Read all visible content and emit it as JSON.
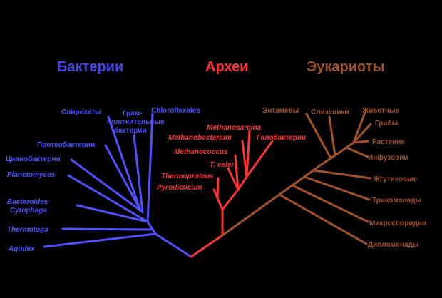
{
  "headings": {
    "bacteria": "Бактерии",
    "archaea": "Археи",
    "eukaryota": "Эукариоты"
  },
  "colors": {
    "bacteria": "#5050ff",
    "archaea": "#ff3333",
    "eukaryota": "#a0522d",
    "background": "#000000"
  },
  "bacteria": {
    "spirochetes": "Спирохеты",
    "gram_positive": [
      "Грам-",
      "положительные",
      "бактерии"
    ],
    "chloroflexi": "Chloroflexales",
    "proteobacteria": "Протеобактерии",
    "cyanobacteria": "Цианобактерии",
    "planctomyces": "Planctomyces",
    "bacteroides": [
      "Bacteroides",
      "Cytophaga"
    ],
    "thermotoga": "Thermotoga",
    "aquifex": "Aquifex"
  },
  "archaea": {
    "methanosarcina": "Methanosarcina",
    "methanobacterium": "Methanobacterium",
    "halobacteria": "Галобактерии",
    "methanococcus": "Methanococcus",
    "t_celer": "T. celer",
    "thermoproteus": "Thermoproteus",
    "pyrodicticum": "Pyrodicticum"
  },
  "eukaryota": {
    "entamoebae": "Энтамёбы",
    "slime_molds": "Слизевики",
    "animals": "Животные",
    "fungi": "Грибы",
    "plants": "Растения",
    "ciliates": "Инфузории",
    "flagellates": "Жгутиковые",
    "trichomonads": "Трихомонады",
    "microsporidia": "Микроспоридии",
    "diplomonads": "Дипломонады"
  }
}
